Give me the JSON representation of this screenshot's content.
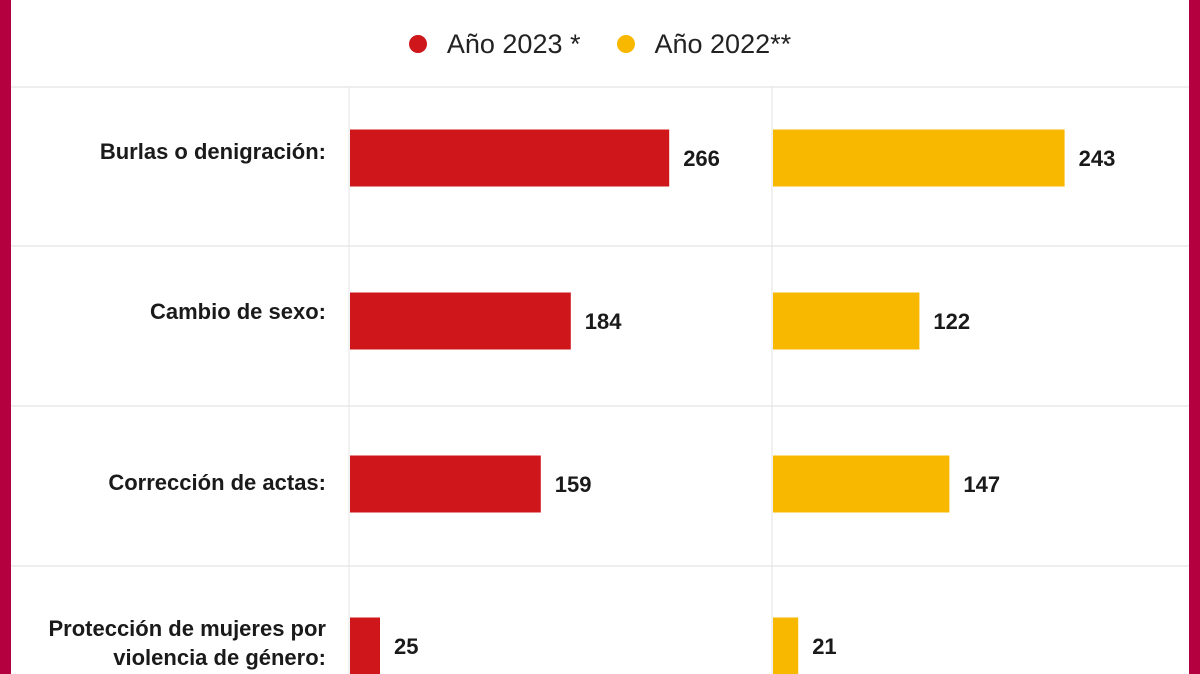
{
  "legend": [
    {
      "label": "Año 2023 *",
      "color": "#cf171b"
    },
    {
      "label": "Año 2022**",
      "color": "#f9b800"
    }
  ],
  "chart_data": {
    "type": "bar",
    "orientation": "horizontal",
    "categories": [
      "Burlas o denigración:",
      "Cambio de sexo:",
      "Corrección de actas:",
      "Protección de mujeres por violencia de género:"
    ],
    "series": [
      {
        "name": "Año 2023 *",
        "color": "#cf171b",
        "values": [
          266,
          184,
          159,
          25
        ]
      },
      {
        "name": "Año 2022**",
        "color": "#f9b800",
        "values": [
          243,
          122,
          147,
          21
        ]
      }
    ],
    "grid": true,
    "legend_position": "top"
  }
}
